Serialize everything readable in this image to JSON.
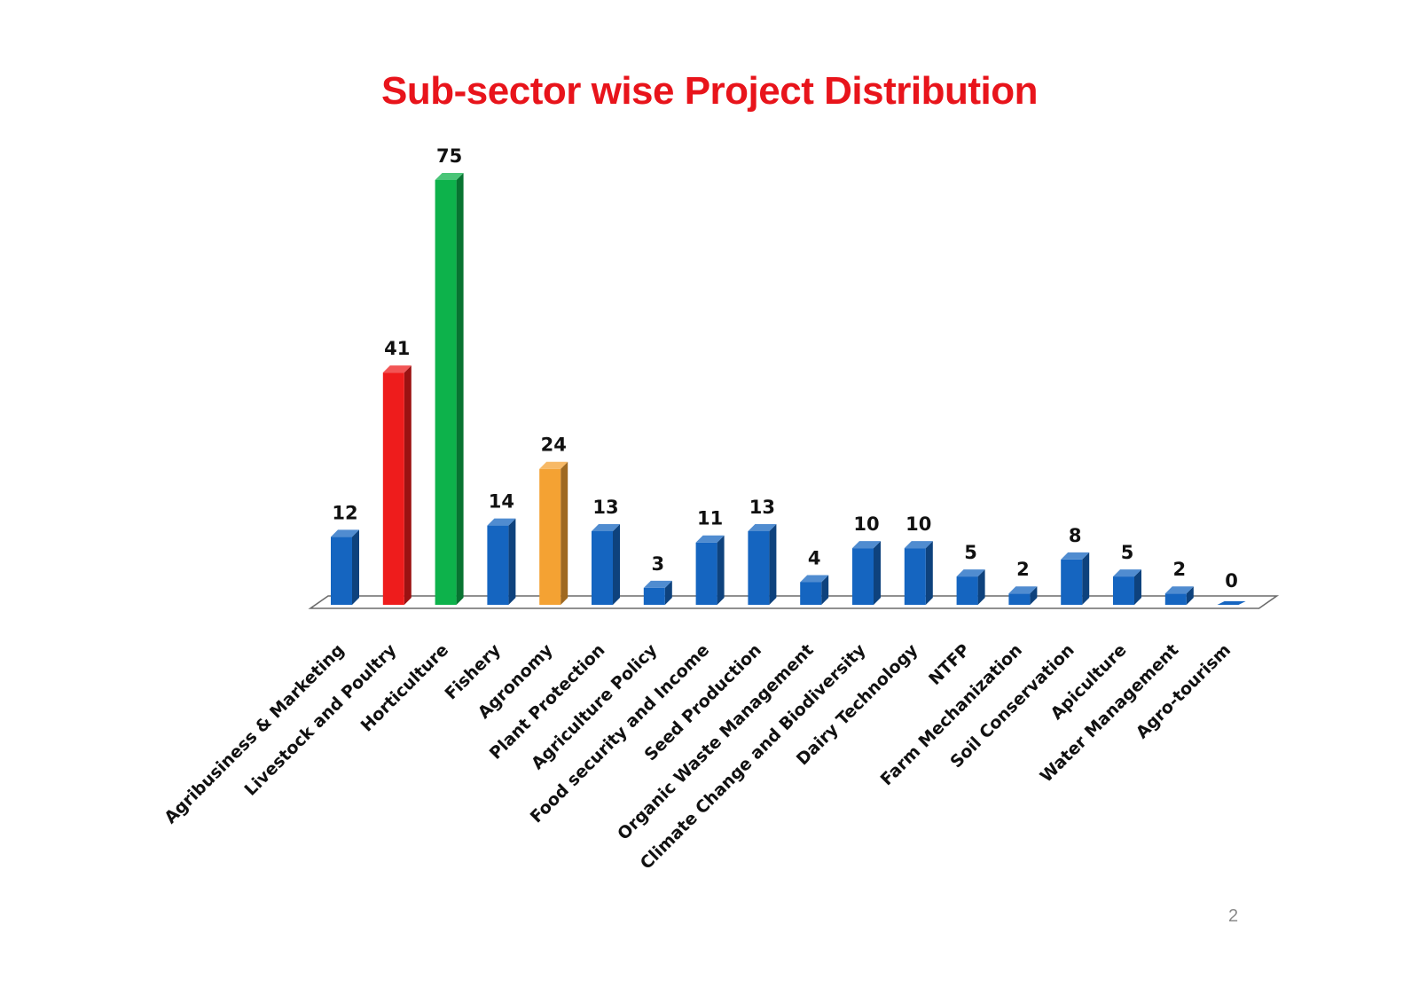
{
  "slide": {
    "title": "Sub-sector wise Project Distribution",
    "page_number": "2"
  },
  "colors": {
    "title": "#e8141b",
    "default_bar": "#1565c0",
    "highlight_red": "#ee1c1c",
    "highlight_green": "#0db24b",
    "highlight_orange": "#f4a233"
  },
  "chart_data": {
    "type": "bar",
    "title": "Sub-sector wise Project Distribution",
    "xlabel": "",
    "ylabel": "",
    "ylim": [
      0,
      75
    ],
    "grid": false,
    "legend": "none",
    "data_labels": true,
    "categories": [
      "Agribusiness & Marketing",
      "Livestock and Poultry",
      "Horticulture",
      "Fishery",
      "Agronomy",
      "Plant Protection",
      "Agriculture Policy",
      "Food security and Income",
      "Seed Production",
      "Organic Waste Management",
      "Climate Change and Biodiversity",
      "Dairy Technology",
      "NTFP",
      "Farm Mechanization",
      "Soil Conservation",
      "Apiculture",
      "Water  Management",
      "Agro-tourism"
    ],
    "values": [
      12,
      41,
      75,
      14,
      24,
      13,
      3,
      11,
      13,
      4,
      10,
      10,
      5,
      2,
      8,
      5,
      2,
      0
    ],
    "bar_colors": [
      "default_bar",
      "highlight_red",
      "highlight_green",
      "default_bar",
      "highlight_orange",
      "default_bar",
      "default_bar",
      "default_bar",
      "default_bar",
      "default_bar",
      "default_bar",
      "default_bar",
      "default_bar",
      "default_bar",
      "default_bar",
      "default_bar",
      "default_bar",
      "default_bar"
    ]
  }
}
